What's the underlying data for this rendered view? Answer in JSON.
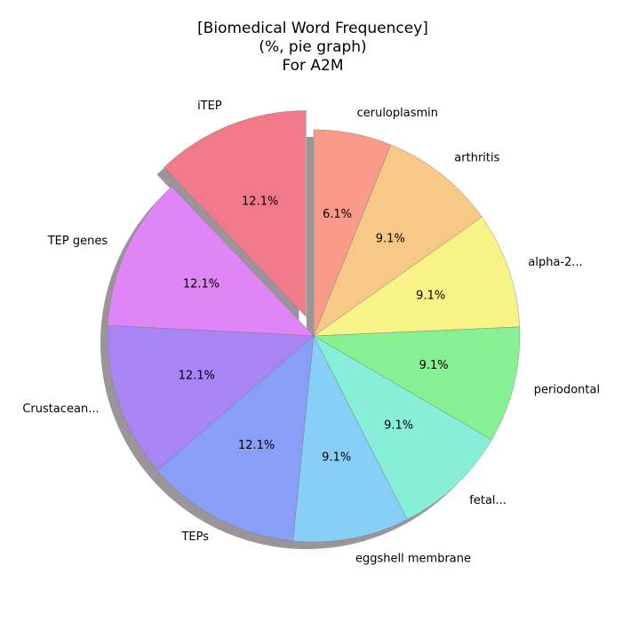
{
  "chart_data": {
    "type": "pie",
    "title_lines": [
      "[Biomedical Word Frequencey]",
      "(%, pie graph)",
      "For A2M"
    ],
    "slices": [
      {
        "label": "iTEP",
        "value": 12.1,
        "pct_label": "12.1%",
        "color": "#f07a8a",
        "exploded": true
      },
      {
        "label": "TEP genes",
        "value": 12.1,
        "pct_label": "12.1%",
        "color": "#df85f5"
      },
      {
        "label": "Crustacean...",
        "value": 12.1,
        "pct_label": "12.1%",
        "color": "#a884f5"
      },
      {
        "label": "TEPs",
        "value": 12.1,
        "pct_label": "12.1%",
        "color": "#889ef7"
      },
      {
        "label": "eggshell membrane",
        "value": 9.1,
        "pct_label": "9.1%",
        "color": "#87cff7"
      },
      {
        "label": "fetal...",
        "value": 9.1,
        "pct_label": "9.1%",
        "color": "#87eed8"
      },
      {
        "label": "periodontal",
        "value": 9.1,
        "pct_label": "9.1%",
        "color": "#87f093"
      },
      {
        "label": "alpha-2...",
        "value": 9.1,
        "pct_label": "9.1%",
        "color": "#f8f387"
      },
      {
        "label": "arthritis",
        "value": 9.1,
        "pct_label": "9.1%",
        "color": "#f8c887"
      },
      {
        "label": "ceruloplasmin",
        "value": 6.1,
        "pct_label": "6.1%",
        "color": "#f99b88"
      }
    ],
    "start_angle_deg": 90,
    "direction": "counterclockwise",
    "shadow": true
  }
}
